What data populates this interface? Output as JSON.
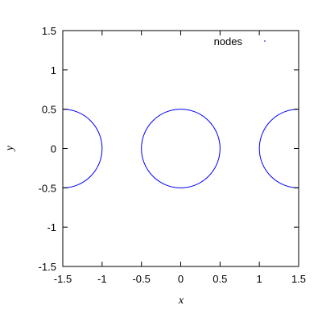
{
  "chart_data": {
    "type": "scatter",
    "title": "",
    "xlabel": "x",
    "ylabel": "y",
    "xlim": [
      -1.5,
      1.5
    ],
    "ylim": [
      -1.5,
      1.5
    ],
    "xticks": [
      "-1.5",
      "-1",
      "-0.5",
      "0",
      "0.5",
      "1",
      "1.5"
    ],
    "yticks": [
      "-1.5",
      "-1",
      "-0.5",
      "0",
      "0.5",
      "1",
      "1.5"
    ],
    "xtick_values": [
      -1.5,
      -1,
      -0.5,
      0,
      0.5,
      1,
      1.5
    ],
    "ytick_values": [
      -1.5,
      -1,
      -0.5,
      0,
      0.5,
      1,
      1.5
    ],
    "grid": false,
    "legend_position": "top-right",
    "series": [
      {
        "name": "nodes",
        "color": "#0000ff",
        "shape": "circles",
        "circles": [
          {
            "cx": -1.5,
            "cy": 0,
            "r": 0.5
          },
          {
            "cx": 0,
            "cy": 0,
            "r": 0.5
          },
          {
            "cx": 1.5,
            "cy": 0,
            "r": 0.5
          }
        ]
      }
    ]
  }
}
